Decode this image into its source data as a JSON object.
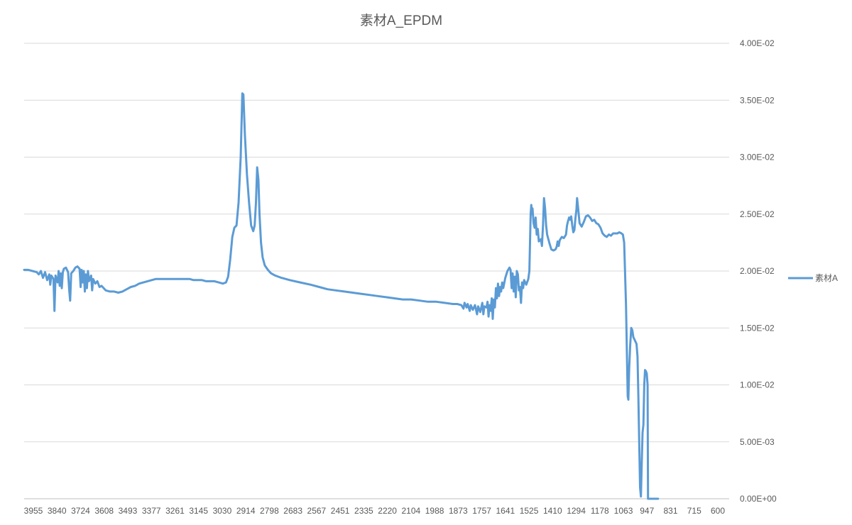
{
  "chart_data": {
    "type": "line",
    "title": "素材A_EPDM",
    "xlabel": "",
    "ylabel": "",
    "x_reversed": true,
    "xlim": [
      3970,
      600
    ],
    "ylim": [
      0,
      0.04
    ],
    "y_axis_position": "right",
    "grid": true,
    "legend_position": "right",
    "x_tick_labels": [
      "3955",
      "3840",
      "3724",
      "3608",
      "3493",
      "3377",
      "3261",
      "3145",
      "3030",
      "2914",
      "2798",
      "2683",
      "2567",
      "2451",
      "2335",
      "2220",
      "2104",
      "1988",
      "1873",
      "1757",
      "1641",
      "1525",
      "1410",
      "1294",
      "1178",
      "1063",
      "947",
      "831",
      "715",
      "600"
    ],
    "y_tick_labels": [
      "4.00E-02",
      "3.50E-02",
      "3.00E-02",
      "2.50E-02",
      "2.00E-02",
      "1.50E-02",
      "1.00E-02",
      "5.00E-03",
      "0.00E+00"
    ],
    "y_tick_values": [
      0.04,
      0.035,
      0.03,
      0.025,
      0.02,
      0.015,
      0.01,
      0.005,
      0
    ],
    "series": [
      {
        "name": "素材A",
        "color": "#5B9BD5",
        "points": [
          [
            3970,
            0.0201
          ],
          [
            3950,
            0.0201
          ],
          [
            3930,
            0.02
          ],
          [
            3910,
            0.0199
          ],
          [
            3900,
            0.0197
          ],
          [
            3890,
            0.02
          ],
          [
            3880,
            0.0194
          ],
          [
            3870,
            0.0199
          ],
          [
            3860,
            0.0192
          ],
          [
            3850,
            0.0197
          ],
          [
            3845,
            0.0188
          ],
          [
            3840,
            0.0196
          ],
          [
            3830,
            0.0193
          ],
          [
            3825,
            0.0165
          ],
          [
            3820,
            0.0196
          ],
          [
            3810,
            0.019
          ],
          [
            3805,
            0.02
          ],
          [
            3800,
            0.0187
          ],
          [
            3795,
            0.0198
          ],
          [
            3790,
            0.0185
          ],
          [
            3785,
            0.0199
          ],
          [
            3780,
            0.0202
          ],
          [
            3770,
            0.0203
          ],
          [
            3760,
            0.0199
          ],
          [
            3755,
            0.0184
          ],
          [
            3750,
            0.0174
          ],
          [
            3745,
            0.0198
          ],
          [
            3735,
            0.02
          ],
          [
            3725,
            0.0203
          ],
          [
            3715,
            0.0204
          ],
          [
            3705,
            0.0202
          ],
          [
            3700,
            0.0186
          ],
          [
            3695,
            0.0201
          ],
          [
            3690,
            0.019
          ],
          [
            3685,
            0.02
          ],
          [
            3680,
            0.0182
          ],
          [
            3675,
            0.0197
          ],
          [
            3670,
            0.0185
          ],
          [
            3665,
            0.02
          ],
          [
            3660,
            0.0191
          ],
          [
            3650,
            0.0196
          ],
          [
            3645,
            0.0183
          ],
          [
            3640,
            0.0193
          ],
          [
            3630,
            0.0189
          ],
          [
            3620,
            0.0191
          ],
          [
            3610,
            0.0186
          ],
          [
            3600,
            0.0187
          ],
          [
            3590,
            0.0185
          ],
          [
            3580,
            0.0183
          ],
          [
            3560,
            0.0182
          ],
          [
            3540,
            0.0182
          ],
          [
            3520,
            0.0181
          ],
          [
            3500,
            0.0182
          ],
          [
            3480,
            0.0184
          ],
          [
            3460,
            0.0186
          ],
          [
            3440,
            0.0187
          ],
          [
            3420,
            0.0189
          ],
          [
            3400,
            0.019
          ],
          [
            3380,
            0.0191
          ],
          [
            3360,
            0.0192
          ],
          [
            3340,
            0.0193
          ],
          [
            3320,
            0.0193
          ],
          [
            3300,
            0.0193
          ],
          [
            3280,
            0.0193
          ],
          [
            3260,
            0.0193
          ],
          [
            3240,
            0.0193
          ],
          [
            3220,
            0.0193
          ],
          [
            3200,
            0.0193
          ],
          [
            3180,
            0.0193
          ],
          [
            3160,
            0.0192
          ],
          [
            3140,
            0.0192
          ],
          [
            3120,
            0.0192
          ],
          [
            3100,
            0.0191
          ],
          [
            3080,
            0.0191
          ],
          [
            3060,
            0.0191
          ],
          [
            3040,
            0.019
          ],
          [
            3020,
            0.0189
          ],
          [
            3005,
            0.019
          ],
          [
            2995,
            0.0195
          ],
          [
            2985,
            0.021
          ],
          [
            2975,
            0.023
          ],
          [
            2965,
            0.0238
          ],
          [
            2955,
            0.024
          ],
          [
            2945,
            0.026
          ],
          [
            2935,
            0.03
          ],
          [
            2927,
            0.0356
          ],
          [
            2922,
            0.0355
          ],
          [
            2915,
            0.032
          ],
          [
            2905,
            0.0285
          ],
          [
            2895,
            0.026
          ],
          [
            2885,
            0.024
          ],
          [
            2875,
            0.0235
          ],
          [
            2868,
            0.024
          ],
          [
            2862,
            0.026
          ],
          [
            2856,
            0.0291
          ],
          [
            2850,
            0.028
          ],
          [
            2845,
            0.025
          ],
          [
            2838,
            0.0225
          ],
          [
            2830,
            0.0212
          ],
          [
            2820,
            0.0205
          ],
          [
            2805,
            0.0201
          ],
          [
            2790,
            0.0198
          ],
          [
            2770,
            0.0196
          ],
          [
            2740,
            0.0194
          ],
          [
            2700,
            0.0192
          ],
          [
            2650,
            0.019
          ],
          [
            2600,
            0.0188
          ],
          [
            2560,
            0.0186
          ],
          [
            2520,
            0.0184
          ],
          [
            2480,
            0.0183
          ],
          [
            2440,
            0.0182
          ],
          [
            2400,
            0.0181
          ],
          [
            2360,
            0.018
          ],
          [
            2320,
            0.0179
          ],
          [
            2280,
            0.0178
          ],
          [
            2240,
            0.0177
          ],
          [
            2200,
            0.0176
          ],
          [
            2160,
            0.0175
          ],
          [
            2120,
            0.0175
          ],
          [
            2080,
            0.0174
          ],
          [
            2040,
            0.0173
          ],
          [
            2000,
            0.0173
          ],
          [
            1960,
            0.0172
          ],
          [
            1920,
            0.0171
          ],
          [
            1900,
            0.0171
          ],
          [
            1880,
            0.017
          ],
          [
            1870,
            0.0167
          ],
          [
            1865,
            0.0172
          ],
          [
            1855,
            0.0168
          ],
          [
            1850,
            0.0171
          ],
          [
            1840,
            0.0165
          ],
          [
            1835,
            0.017
          ],
          [
            1825,
            0.0166
          ],
          [
            1815,
            0.017
          ],
          [
            1805,
            0.0162
          ],
          [
            1800,
            0.0169
          ],
          [
            1790,
            0.0164
          ],
          [
            1780,
            0.0172
          ],
          [
            1775,
            0.0162
          ],
          [
            1770,
            0.0169
          ],
          [
            1760,
            0.0168
          ],
          [
            1755,
            0.0173
          ],
          [
            1750,
            0.016
          ],
          [
            1745,
            0.017
          ],
          [
            1740,
            0.0165
          ],
          [
            1735,
            0.0176
          ],
          [
            1730,
            0.0158
          ],
          [
            1725,
            0.0175
          ],
          [
            1720,
            0.0168
          ],
          [
            1715,
            0.0185
          ],
          [
            1710,
            0.0176
          ],
          [
            1705,
            0.0189
          ],
          [
            1700,
            0.0178
          ],
          [
            1695,
            0.0186
          ],
          [
            1690,
            0.0182
          ],
          [
            1685,
            0.019
          ],
          [
            1680,
            0.0185
          ],
          [
            1670,
            0.0194
          ],
          [
            1660,
            0.02
          ],
          [
            1650,
            0.0203
          ],
          [
            1645,
            0.0201
          ],
          [
            1640,
            0.0185
          ],
          [
            1635,
            0.0198
          ],
          [
            1630,
            0.0182
          ],
          [
            1625,
            0.0195
          ],
          [
            1620,
            0.0177
          ],
          [
            1615,
            0.02
          ],
          [
            1610,
            0.0197
          ],
          [
            1605,
            0.0183
          ],
          [
            1600,
            0.0186
          ],
          [
            1595,
            0.0172
          ],
          [
            1590,
            0.019
          ],
          [
            1585,
            0.0185
          ],
          [
            1580,
            0.0192
          ],
          [
            1570,
            0.0188
          ],
          [
            1560,
            0.0193
          ],
          [
            1555,
            0.02
          ],
          [
            1552,
            0.0225
          ],
          [
            1549,
            0.025
          ],
          [
            1546,
            0.0258
          ],
          [
            1543,
            0.025
          ],
          [
            1540,
            0.0255
          ],
          [
            1535,
            0.0242
          ],
          [
            1530,
            0.0238
          ],
          [
            1525,
            0.0247
          ],
          [
            1520,
            0.0232
          ],
          [
            1515,
            0.0237
          ],
          [
            1510,
            0.0226
          ],
          [
            1500,
            0.0228
          ],
          [
            1495,
            0.0222
          ],
          [
            1490,
            0.024
          ],
          [
            1485,
            0.0264
          ],
          [
            1480,
            0.0255
          ],
          [
            1475,
            0.024
          ],
          [
            1470,
            0.0232
          ],
          [
            1460,
            0.0225
          ],
          [
            1450,
            0.0219
          ],
          [
            1440,
            0.0218
          ],
          [
            1430,
            0.0219
          ],
          [
            1425,
            0.0221
          ],
          [
            1420,
            0.0226
          ],
          [
            1415,
            0.0222
          ],
          [
            1410,
            0.0227
          ],
          [
            1400,
            0.023
          ],
          [
            1390,
            0.0229
          ],
          [
            1380,
            0.0232
          ],
          [
            1375,
            0.024
          ],
          [
            1370,
            0.0244
          ],
          [
            1365,
            0.0247
          ],
          [
            1360,
            0.0245
          ],
          [
            1355,
            0.0248
          ],
          [
            1350,
            0.024
          ],
          [
            1345,
            0.0234
          ],
          [
            1340,
            0.0236
          ],
          [
            1335,
            0.0246
          ],
          [
            1330,
            0.0254
          ],
          [
            1327,
            0.0264
          ],
          [
            1322,
            0.0255
          ],
          [
            1315,
            0.0242
          ],
          [
            1305,
            0.0239
          ],
          [
            1295,
            0.0243
          ],
          [
            1285,
            0.0248
          ],
          [
            1275,
            0.0249
          ],
          [
            1265,
            0.0247
          ],
          [
            1255,
            0.0244
          ],
          [
            1245,
            0.0245
          ],
          [
            1235,
            0.0242
          ],
          [
            1225,
            0.0241
          ],
          [
            1215,
            0.0238
          ],
          [
            1205,
            0.0233
          ],
          [
            1195,
            0.0231
          ],
          [
            1185,
            0.023
          ],
          [
            1175,
            0.0232
          ],
          [
            1165,
            0.0231
          ],
          [
            1155,
            0.0233
          ],
          [
            1145,
            0.0233
          ],
          [
            1135,
            0.0233
          ],
          [
            1125,
            0.0234
          ],
          [
            1115,
            0.0233
          ],
          [
            1108,
            0.0232
          ],
          [
            1102,
            0.0225
          ],
          [
            1098,
            0.02
          ],
          [
            1093,
            0.017
          ],
          [
            1088,
            0.012
          ],
          [
            1085,
            0.009
          ],
          [
            1082,
            0.0087
          ],
          [
            1078,
            0.0115
          ],
          [
            1073,
            0.0135
          ],
          [
            1068,
            0.015
          ],
          [
            1063,
            0.0148
          ],
          [
            1058,
            0.0142
          ],
          [
            1053,
            0.014
          ],
          [
            1048,
            0.0138
          ],
          [
            1043,
            0.0136
          ],
          [
            1038,
            0.0125
          ],
          [
            1034,
            0.009
          ],
          [
            1030,
            0.005
          ],
          [
            1026,
            0.001
          ],
          [
            1022,
            0.0002
          ],
          [
            1018,
            0.003
          ],
          [
            1014,
            0.0058
          ],
          [
            1010,
            0.0065
          ],
          [
            1006,
            0.01
          ],
          [
            1002,
            0.0113
          ],
          [
            998,
            0.0112
          ],
          [
            994,
            0.011
          ],
          [
            990,
            0.01
          ],
          [
            988,
            0.0
          ],
          [
            975,
            0.0
          ],
          [
            960,
            0.0
          ],
          [
            940,
            0.0
          ]
        ]
      }
    ]
  }
}
